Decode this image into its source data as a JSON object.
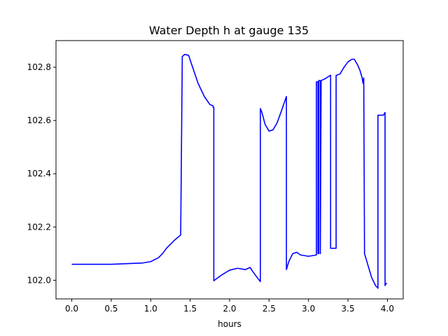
{
  "chart_data": {
    "type": "line",
    "title": "Water Depth h at gauge 135",
    "xlabel": "hours",
    "ylabel": "",
    "xlim": [
      -0.2,
      4.2
    ],
    "ylim": [
      101.93,
      102.9
    ],
    "xticks": [
      0.0,
      0.5,
      1.0,
      1.5,
      2.0,
      2.5,
      3.0,
      3.5,
      4.0
    ],
    "xtick_labels": [
      "0.0",
      "0.5",
      "1.0",
      "1.5",
      "2.0",
      "2.5",
      "3.0",
      "3.5",
      "4.0"
    ],
    "yticks": [
      102.0,
      102.2,
      102.4,
      102.6,
      102.8
    ],
    "ytick_labels": [
      "102.0",
      "102.2",
      "102.4",
      "102.6",
      "102.8"
    ],
    "grid": false,
    "line_color": "#0000ff",
    "series": [
      {
        "x": [
          0.0,
          0.5,
          0.9,
          1.0,
          1.1,
          1.15,
          1.2,
          1.3,
          1.38,
          1.4,
          1.4,
          1.43,
          1.48,
          1.52,
          1.6,
          1.68,
          1.75,
          1.79,
          1.79,
          1.8,
          1.8,
          1.83,
          1.9,
          2.0,
          2.1,
          2.2,
          2.26,
          2.3,
          2.35,
          2.39,
          2.39,
          2.41,
          2.45,
          2.5,
          2.55,
          2.6,
          2.65,
          2.72,
          2.72,
          2.75,
          2.8,
          2.85,
          2.9,
          3.0,
          3.1,
          3.1,
          3.12,
          3.12,
          3.13,
          3.13,
          3.15,
          3.15,
          3.16,
          3.2,
          3.28,
          3.28,
          3.3,
          3.35,
          3.35,
          3.36,
          3.4,
          3.45,
          3.5,
          3.55,
          3.58,
          3.62,
          3.65,
          3.68,
          3.69,
          3.7,
          3.71,
          3.72,
          3.75,
          3.8,
          3.85,
          3.88,
          3.88,
          3.9,
          3.95,
          3.97,
          3.97,
          3.99
        ],
        "y": [
          102.06,
          102.06,
          102.065,
          102.07,
          102.085,
          102.1,
          102.12,
          102.15,
          102.17,
          102.825,
          102.84,
          102.848,
          102.845,
          102.81,
          102.74,
          102.69,
          102.66,
          102.655,
          102.65,
          102.65,
          101.998,
          102.005,
          102.02,
          102.038,
          102.045,
          102.04,
          102.048,
          102.03,
          102.01,
          101.995,
          102.645,
          102.63,
          102.585,
          102.56,
          102.565,
          102.59,
          102.63,
          102.69,
          102.04,
          102.07,
          102.1,
          102.105,
          102.095,
          102.09,
          102.095,
          102.745,
          102.745,
          102.1,
          102.1,
          102.75,
          102.75,
          102.1,
          102.75,
          102.755,
          102.77,
          102.12,
          102.12,
          102.12,
          102.77,
          102.77,
          102.775,
          102.8,
          102.82,
          102.83,
          102.83,
          102.81,
          102.79,
          102.76,
          102.74,
          102.76,
          102.1,
          102.09,
          102.06,
          102.01,
          101.98,
          101.97,
          102.62,
          102.62,
          102.62,
          102.63,
          101.98,
          101.99
        ]
      }
    ]
  }
}
